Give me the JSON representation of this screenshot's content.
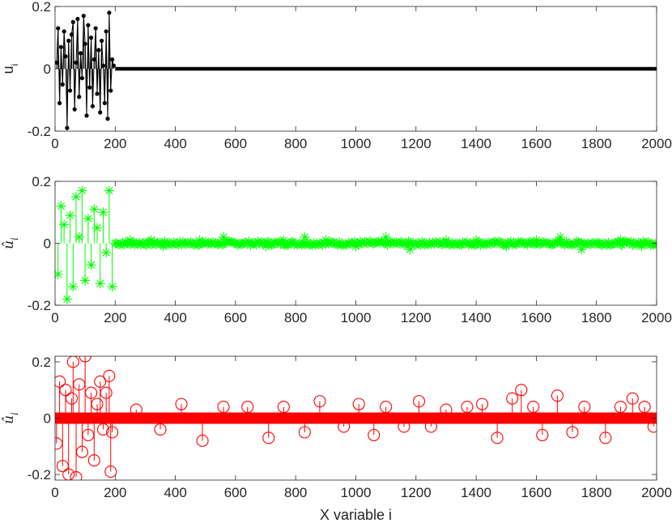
{
  "colors": {
    "panel1": "#000000",
    "panel2": "#00ff00",
    "panel3": "#ff0000",
    "axes": "#262626"
  },
  "chart_data": [
    {
      "type": "line",
      "marker": "dot",
      "style": "stem",
      "color": "#000000",
      "ylabel": "u",
      "ylabel_sub": "i",
      "xlim": [
        0,
        2000
      ],
      "ylim": [
        -0.2,
        0.2
      ],
      "xticks": [
        "0",
        "200",
        "400",
        "600",
        "800",
        "1000",
        "1200",
        "1400",
        "1600",
        "1800",
        "2000"
      ],
      "yticks": [
        "-0.2",
        "0",
        "0.2"
      ],
      "grid": false,
      "active_range": [
        1,
        200
      ],
      "series": [
        {
          "x": [
            5,
            10,
            15,
            20,
            25,
            30,
            35,
            40,
            45,
            50,
            55,
            60,
            65,
            70,
            75,
            80,
            85,
            90,
            95,
            100,
            105,
            110,
            115,
            120,
            125,
            130,
            135,
            140,
            145,
            150,
            155,
            160,
            165,
            170,
            175,
            180,
            185,
            190,
            195
          ],
          "y": [
            0.02,
            0.13,
            -0.11,
            0.07,
            -0.05,
            0.12,
            0.04,
            -0.19,
            0.09,
            -0.07,
            0.11,
            0.15,
            -0.13,
            0.02,
            0.16,
            -0.09,
            0.05,
            -0.03,
            0.17,
            0.08,
            -0.15,
            0.14,
            -0.06,
            0.1,
            -0.12,
            0.03,
            0.13,
            -0.08,
            0.06,
            -0.14,
            0.09,
            0.01,
            -0.11,
            0.12,
            -0.16,
            0.18,
            -0.07,
            0.03,
            0.01
          ]
        }
      ]
    },
    {
      "type": "line",
      "marker": "asterisk",
      "style": "stem",
      "color": "#00ff00",
      "ylabel": "û",
      "ylabel_sub": "i",
      "xlim": [
        0,
        2000
      ],
      "ylim": [
        -0.2,
        0.2
      ],
      "xticks": [
        "0",
        "200",
        "400",
        "600",
        "800",
        "1000",
        "1200",
        "1400",
        "1600",
        "1800",
        "2000"
      ],
      "yticks": [
        "-0.2",
        "0",
        "0.2"
      ],
      "grid": false,
      "series": [
        {
          "x": [
            10,
            20,
            30,
            40,
            50,
            60,
            70,
            80,
            90,
            100,
            110,
            120,
            130,
            140,
            150,
            160,
            170,
            180,
            190,
            250,
            320,
            360,
            480,
            560,
            700,
            760,
            830,
            900,
            1000,
            1100,
            1180,
            1300,
            1400,
            1500,
            1600,
            1680,
            1750,
            1880,
            1950
          ],
          "y": [
            -0.1,
            0.12,
            0.06,
            -0.18,
            0.09,
            -0.14,
            0.15,
            0.02,
            0.17,
            -0.12,
            0.08,
            -0.07,
            0.11,
            0.05,
            -0.13,
            0.1,
            -0.03,
            0.17,
            -0.14,
            0.01,
            0.01,
            -0.01,
            0.01,
            0.02,
            -0.01,
            0.01,
            0.02,
            0.01,
            -0.01,
            0.02,
            -0.02,
            0.01,
            0.01,
            -0.01,
            0.01,
            0.02,
            -0.02,
            0.01,
            -0.01
          ]
        }
      ]
    },
    {
      "type": "line",
      "marker": "circle",
      "style": "stem",
      "color": "#ff0000",
      "ylabel": "û",
      "ylabel_sub": "i",
      "xlabel": "X variable i",
      "xlim": [
        0,
        2000
      ],
      "ylim": [
        -0.22,
        0.22
      ],
      "xticks": [
        "0",
        "200",
        "400",
        "600",
        "800",
        "1000",
        "1200",
        "1400",
        "1600",
        "1800",
        "2000"
      ],
      "yticks": [
        "-0.2",
        "0",
        "0.2"
      ],
      "grid": false,
      "series": [
        {
          "x": [
            5,
            15,
            25,
            35,
            45,
            55,
            60,
            70,
            80,
            90,
            100,
            110,
            120,
            130,
            140,
            150,
            160,
            170,
            180,
            185,
            190,
            270,
            350,
            420,
            490,
            560,
            640,
            710,
            760,
            830,
            880,
            960,
            1010,
            1060,
            1100,
            1160,
            1210,
            1250,
            1300,
            1370,
            1420,
            1470,
            1520,
            1550,
            1590,
            1620,
            1670,
            1720,
            1760,
            1830,
            1880,
            1920,
            1960,
            1990
          ],
          "y": [
            -0.09,
            0.13,
            -0.17,
            0.1,
            -0.2,
            0.07,
            0.2,
            -0.21,
            0.12,
            -0.12,
            0.22,
            -0.06,
            0.09,
            -0.15,
            0.05,
            0.13,
            -0.04,
            0.09,
            0.15,
            -0.19,
            -0.05,
            0.03,
            -0.04,
            0.05,
            -0.08,
            0.04,
            0.04,
            -0.07,
            0.04,
            -0.05,
            0.06,
            -0.03,
            0.05,
            -0.06,
            0.04,
            -0.03,
            0.06,
            -0.03,
            0.03,
            0.04,
            0.05,
            -0.07,
            0.07,
            0.1,
            0.04,
            -0.06,
            0.08,
            -0.05,
            0.04,
            -0.07,
            0.04,
            0.07,
            0.04,
            -0.03
          ]
        }
      ]
    }
  ]
}
